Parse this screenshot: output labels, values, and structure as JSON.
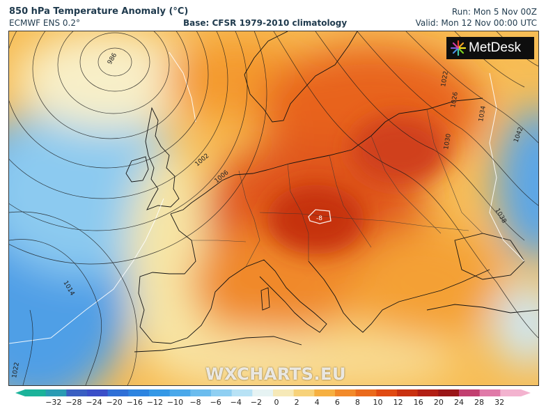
{
  "header": {
    "title": "850 hPa Temperature Anomaly (°C)",
    "subtitle": "ECMWF ENS 0.2°",
    "base": "Base: CFSR 1979-2010 climatology",
    "run": "Run: Mon 5 Nov 00Z",
    "valid": "Valid: Mon 12 Nov 00:00 UTC"
  },
  "logo": {
    "text": "MetDesk",
    "icon": "metdesk-starburst-icon"
  },
  "watermark": "WXCHARTS.EU",
  "contour_labels": [
    "986",
    "1002",
    "1006",
    "1014",
    "1022",
    "1022",
    "1026",
    "1030",
    "1034",
    "1038",
    "1042",
    "-8"
  ],
  "colorbar": {
    "ticks": [
      "−32",
      "−28",
      "−24",
      "−20",
      "−16",
      "−12",
      "−10",
      "−8",
      "−6",
      "−4",
      "−2",
      "0",
      "2",
      "4",
      "6",
      "8",
      "10",
      "12",
      "16",
      "20",
      "24",
      "28",
      "32"
    ],
    "colors": [
      "#1bb39a",
      "#2a9bb3",
      "#3a5fc2",
      "#3b4fc8",
      "#2f6fd6",
      "#2d84e0",
      "#3498e6",
      "#4aa8ea",
      "#6bbcee",
      "#8fcff2",
      "#b8e2f5",
      "#e6f3f3",
      "#f6e9b8",
      "#f7d27a",
      "#f6b041",
      "#f28a2a",
      "#ea6a1c",
      "#e04a12",
      "#c93110",
      "#b21f14",
      "#9a1618",
      "#c24070",
      "#e07aa8",
      "#f3b3cf"
    ]
  },
  "colors": {
    "cold_blue": "#6db6ea",
    "warm_orange": "#f49a2e",
    "hot_red": "#d63a12"
  }
}
